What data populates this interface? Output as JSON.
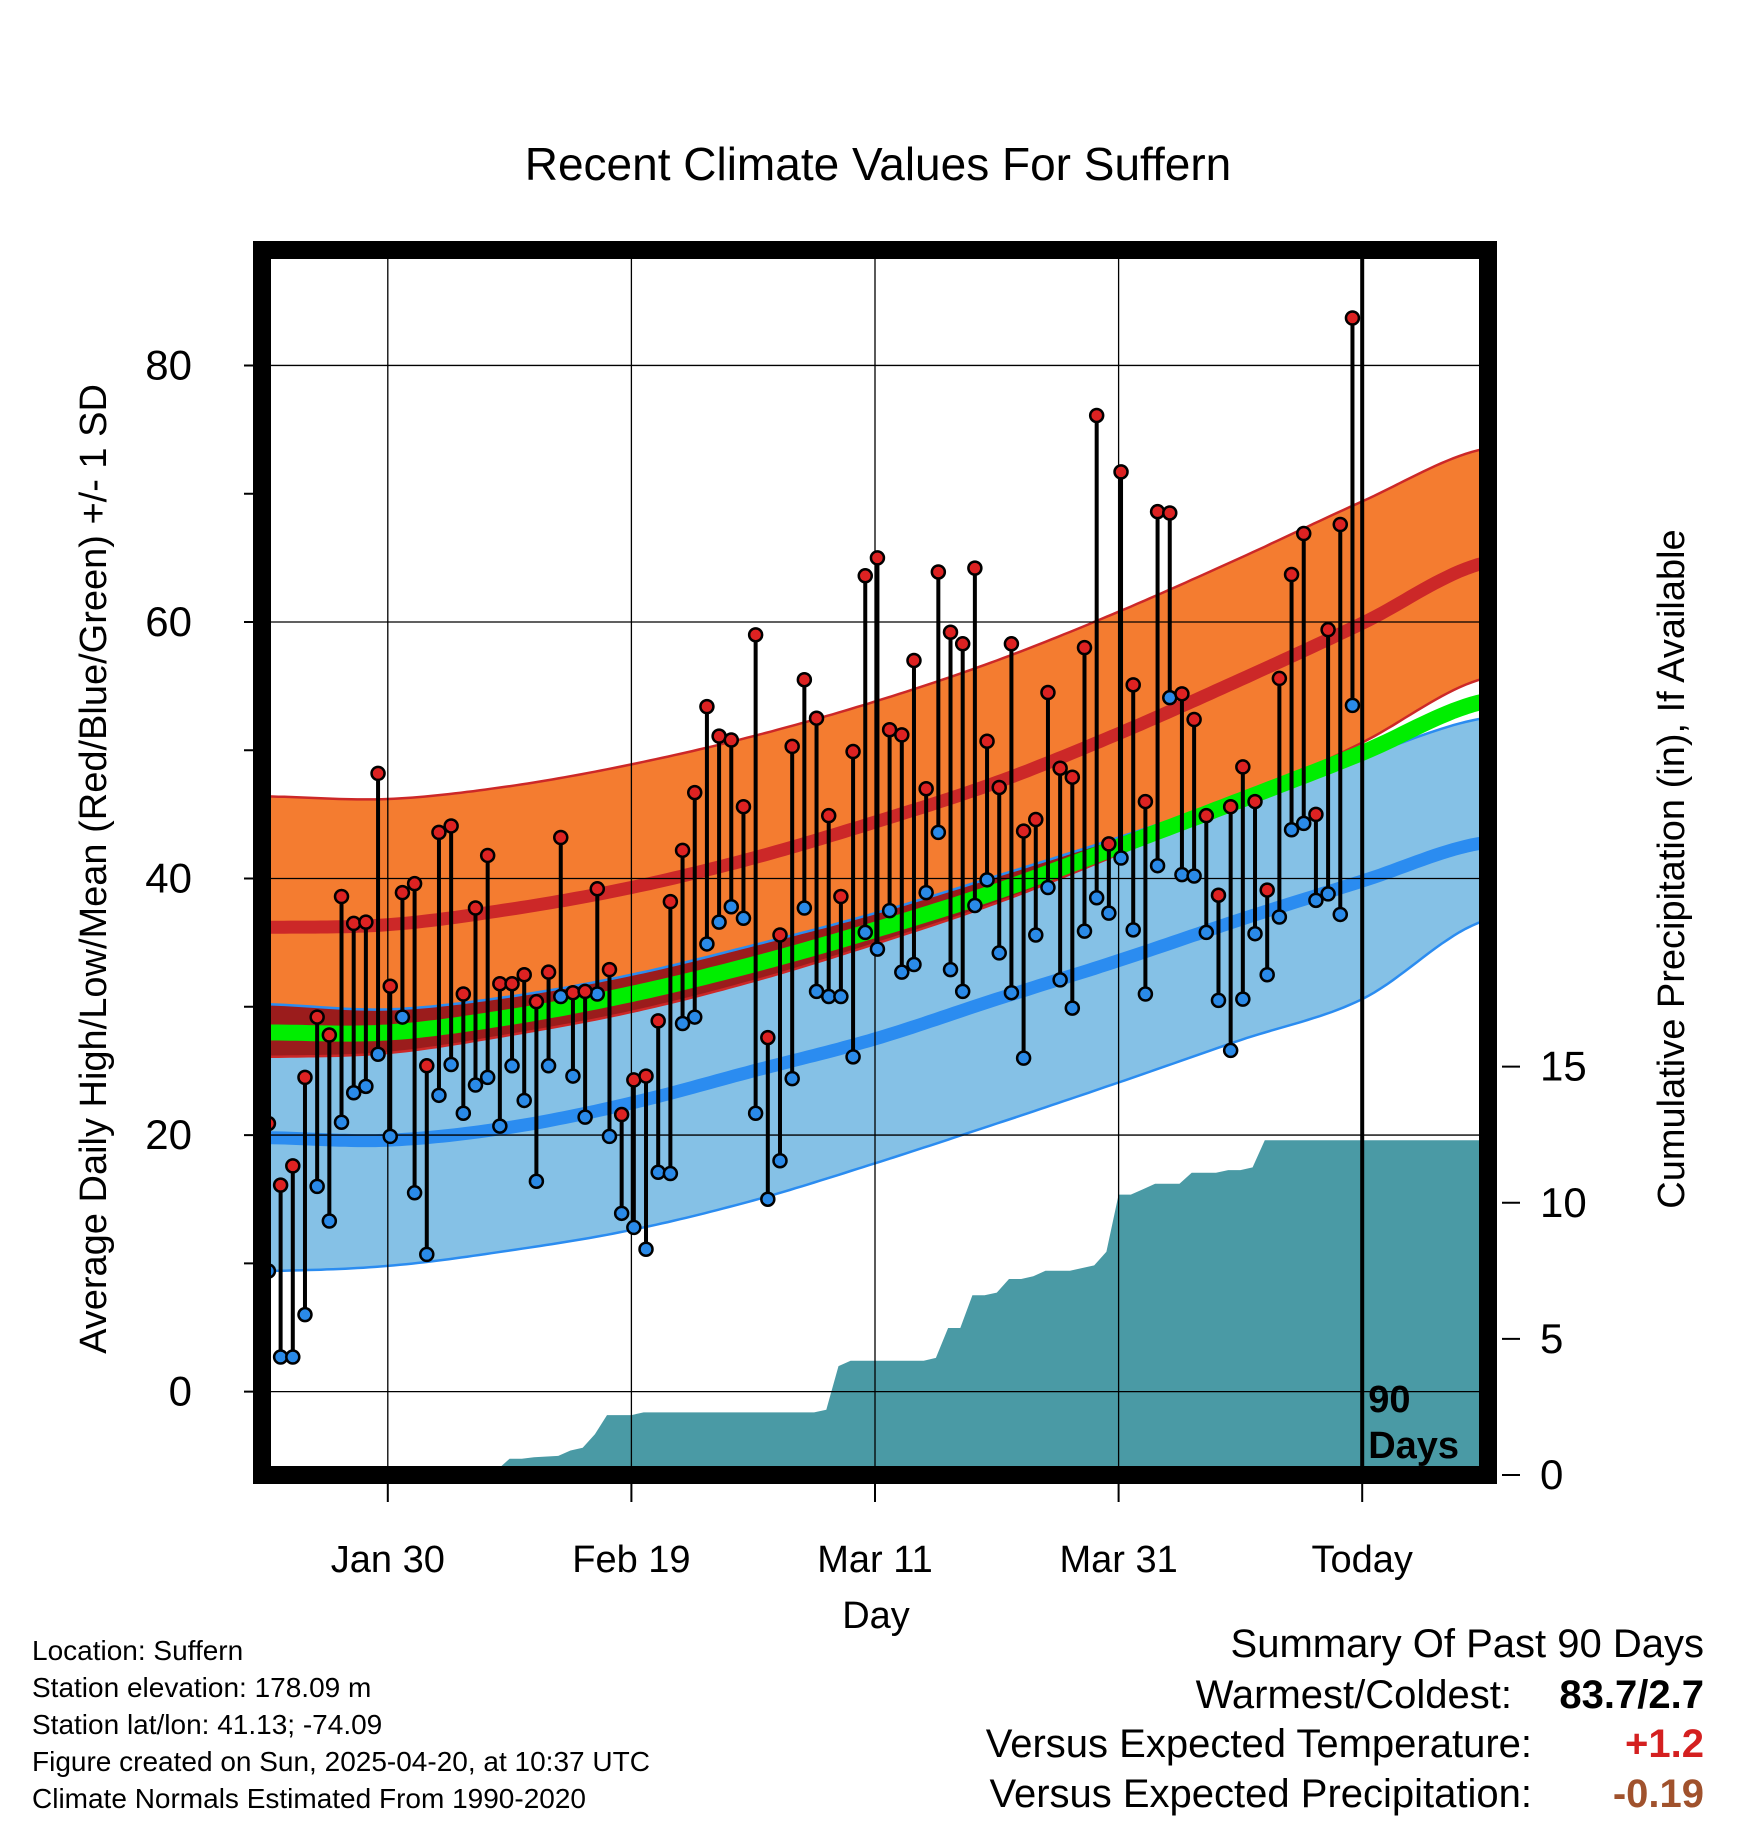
{
  "chart_data": {
    "type": "line",
    "title": "Recent Climate Values For Suffern",
    "xlabel": "Day",
    "ylabel": "Average Daily High/Low/Mean (Red/Blue/Green) +/- 1 SD",
    "y2label": "Cumulative Precipitation (in), If Available",
    "ylim": [
      -6.5,
      89
    ],
    "y2lim": [
      0,
      45
    ],
    "xlim": [
      0,
      100
    ],
    "x_ticks": [
      {
        "x": 10,
        "label": "Jan 30"
      },
      {
        "x": 30,
        "label": "Feb 19"
      },
      {
        "x": 50,
        "label": "Mar 11"
      },
      {
        "x": 70,
        "label": "Mar 31"
      },
      {
        "x": 90,
        "label": "Today"
      }
    ],
    "y_ticks": [
      0,
      20,
      40,
      60,
      80
    ],
    "y_minor_ticks": [
      10,
      30,
      50,
      70
    ],
    "y2_ticks": [
      0,
      5,
      10,
      15
    ],
    "today_x": 90,
    "today_label": [
      "90",
      "Days"
    ],
    "grid": true,
    "colors": {
      "high_band": "#f47c30",
      "high_mean": "#cc2828",
      "high_edge": "#cc2828",
      "low_band": "#85c1e6",
      "low_mean": "#2b8cf0",
      "low_edge": "#2b8cf0",
      "mean_line": "#00ee00",
      "overlap": "#9b1c1c",
      "precip": "#4a9aa5",
      "high_dot": "#dd2222",
      "low_dot": "#2a8ae8"
    },
    "normals": {
      "x": [
        0,
        10,
        20,
        30,
        40,
        50,
        60,
        70,
        80,
        90,
        100
      ],
      "high_mean": [
        36.2,
        36.4,
        37.6,
        39.3,
        41.6,
        44.4,
        47.5,
        51.3,
        55.5,
        59.9,
        64.6
      ],
      "high_upper": [
        46.4,
        46.2,
        47.2,
        48.9,
        51.1,
        53.8,
        57.0,
        60.8,
        65.0,
        69.4,
        73.5
      ],
      "high_lower": [
        26.1,
        26.4,
        27.8,
        29.6,
        32.0,
        34.9,
        38.1,
        41.9,
        46.1,
        50.6,
        55.6
      ],
      "mean": [
        28.0,
        28.0,
        29.2,
        31.0,
        33.3,
        36.0,
        39.0,
        42.5,
        46.1,
        49.8,
        53.8
      ],
      "low_mean": [
        19.8,
        19.6,
        20.6,
        22.5,
        25.0,
        27.5,
        30.6,
        33.6,
        36.8,
        39.8,
        42.8
      ],
      "low_upper": [
        30.2,
        29.8,
        30.8,
        32.5,
        34.8,
        37.3,
        40.2,
        43.2,
        46.4,
        49.5,
        52.5
      ],
      "low_lower": [
        9.4,
        9.8,
        11.0,
        12.6,
        14.9,
        17.8,
        20.9,
        24.1,
        27.4,
        30.6,
        36.7
      ]
    },
    "series": [
      {
        "name": "High",
        "x": [
          0.2,
          1.2,
          2.2,
          3.2,
          4.2,
          5.2,
          6.2,
          7.2,
          8.2,
          9.2,
          10.2,
          11.2,
          12.2,
          13.2,
          14.2,
          15.2,
          16.2,
          17.2,
          18.2,
          19.2,
          20.2,
          21.2,
          22.2,
          23.2,
          24.2,
          25.2,
          26.2,
          27.2,
          28.2,
          29.2,
          30.2,
          31.2,
          32.2,
          33.2,
          34.2,
          35.2,
          36.2,
          37.2,
          38.2,
          39.2,
          40.2,
          41.2,
          42.2,
          43.2,
          44.2,
          45.2,
          46.2,
          47.2,
          48.2,
          49.2,
          50.2,
          51.2,
          52.2,
          53.2,
          54.2,
          55.2,
          56.2,
          57.2,
          58.2,
          59.2,
          60.2,
          61.2,
          62.2,
          63.2,
          64.2,
          65.2,
          66.2,
          67.2,
          68.2,
          69.2,
          70.2,
          71.2,
          72.2,
          73.2,
          74.2,
          75.2,
          76.2,
          77.2,
          78.2,
          79.2,
          80.2,
          81.2,
          82.2,
          83.2,
          84.2,
          85.2,
          86.2,
          87.2,
          88.2,
          89.2
        ],
        "values": [
          20.9,
          16.1,
          17.6,
          24.5,
          29.2,
          27.8,
          38.6,
          36.5,
          36.6,
          48.2,
          31.6,
          38.9,
          39.6,
          25.4,
          43.6,
          44.1,
          31.0,
          37.7,
          41.8,
          31.8,
          31.8,
          32.5,
          30.4,
          32.7,
          43.2,
          31.1,
          31.2,
          39.2,
          32.9,
          21.6,
          24.3,
          24.6,
          28.9,
          38.2,
          42.2,
          46.7,
          53.4,
          51.1,
          50.8,
          45.6,
          59.0,
          27.6,
          35.6,
          50.3,
          55.5,
          52.5,
          44.9,
          38.6,
          49.9,
          63.6,
          65.0,
          51.6,
          51.2,
          57.0,
          47.0,
          63.9,
          59.2,
          58.3,
          64.2,
          50.7,
          47.1,
          58.3,
          43.7,
          44.6,
          54.5,
          48.6,
          47.9,
          58.0,
          76.1,
          42.7,
          71.7,
          55.1,
          46.0,
          68.6,
          68.5,
          54.4,
          52.4,
          44.9,
          38.7,
          45.6,
          48.7,
          46.0,
          39.1,
          55.6,
          63.7,
          66.9,
          45.0,
          59.4,
          67.6,
          83.7
        ]
      },
      {
        "name": "Low",
        "x": [
          0.2,
          1.2,
          2.2,
          3.2,
          4.2,
          5.2,
          6.2,
          7.2,
          8.2,
          9.2,
          10.2,
          11.2,
          12.2,
          13.2,
          14.2,
          15.2,
          16.2,
          17.2,
          18.2,
          19.2,
          20.2,
          21.2,
          22.2,
          23.2,
          24.2,
          25.2,
          26.2,
          27.2,
          28.2,
          29.2,
          30.2,
          31.2,
          32.2,
          33.2,
          34.2,
          35.2,
          36.2,
          37.2,
          38.2,
          39.2,
          40.2,
          41.2,
          42.2,
          43.2,
          44.2,
          45.2,
          46.2,
          47.2,
          48.2,
          49.2,
          50.2,
          51.2,
          52.2,
          53.2,
          54.2,
          55.2,
          56.2,
          57.2,
          58.2,
          59.2,
          60.2,
          61.2,
          62.2,
          63.2,
          64.2,
          65.2,
          66.2,
          67.2,
          68.2,
          69.2,
          70.2,
          71.2,
          72.2,
          73.2,
          74.2,
          75.2,
          76.2,
          77.2,
          78.2,
          79.2,
          80.2,
          81.2,
          82.2,
          83.2,
          84.2,
          85.2,
          86.2,
          87.2,
          88.2,
          89.2
        ],
        "values": [
          9.4,
          2.7,
          2.7,
          6.0,
          16.0,
          13.3,
          21.0,
          23.3,
          23.8,
          26.3,
          19.9,
          29.2,
          15.5,
          10.7,
          23.1,
          25.5,
          21.7,
          23.9,
          24.5,
          20.7,
          25.4,
          22.7,
          16.4,
          25.4,
          30.8,
          24.6,
          21.4,
          31.0,
          19.9,
          13.9,
          12.8,
          11.1,
          17.1,
          17.0,
          28.7,
          29.2,
          34.9,
          36.6,
          37.8,
          36.9,
          21.7,
          15.0,
          18.0,
          24.4,
          37.7,
          31.2,
          30.8,
          30.8,
          26.1,
          35.8,
          34.5,
          37.5,
          32.7,
          33.3,
          38.9,
          43.6,
          32.9,
          31.2,
          37.9,
          39.9,
          34.2,
          31.1,
          26.0,
          35.6,
          39.3,
          32.1,
          29.9,
          35.9,
          38.5,
          37.3,
          41.6,
          36.0,
          31.0,
          41.0,
          54.1,
          40.3,
          40.2,
          35.8,
          30.5,
          26.6,
          30.6,
          35.7,
          32.5,
          37.0,
          43.8,
          44.3,
          38.3,
          38.8,
          37.2,
          53.5
        ]
      }
    ],
    "precip": {
      "x": [
        0,
        16,
        17,
        17.5,
        19,
        20,
        21,
        22,
        24,
        25,
        26,
        27,
        28,
        29,
        30,
        31,
        32,
        33,
        35,
        37,
        39,
        41,
        43,
        44,
        45,
        46,
        47,
        48,
        50,
        52,
        54,
        55,
        56,
        57,
        58,
        59,
        60,
        61,
        62,
        63,
        64,
        66,
        68,
        69,
        70,
        71,
        72,
        73,
        75,
        76,
        78,
        79,
        80,
        81,
        82,
        83,
        85,
        87,
        89,
        90,
        100
      ],
      "values": [
        0,
        0,
        0.1,
        0.2,
        0.2,
        0.6,
        0.6,
        0.65,
        0.7,
        0.9,
        1.0,
        1.5,
        2.2,
        2.2,
        2.2,
        2.3,
        2.3,
        2.3,
        2.3,
        2.3,
        2.3,
        2.3,
        2.3,
        2.3,
        2.3,
        2.4,
        4.0,
        4.2,
        4.2,
        4.2,
        4.2,
        4.3,
        5.4,
        5.4,
        6.6,
        6.6,
        6.7,
        7.2,
        7.2,
        7.3,
        7.5,
        7.5,
        7.7,
        8.2,
        10.3,
        10.3,
        10.5,
        10.7,
        10.7,
        11.1,
        11.1,
        11.2,
        11.2,
        11.3,
        12.3,
        12.3,
        12.3,
        12.3,
        12.3,
        12.3,
        12.3
      ]
    }
  },
  "footer": {
    "location": "Location: Suffern",
    "elevation": "Station elevation: 178.09 m",
    "latlon": "Station lat/lon: 41.13; -74.09",
    "created": "Figure created on Sun, 2025-04-20, at 10:37 UTC",
    "normals": "Climate Normals Estimated From 1990-2020"
  },
  "summary": {
    "heading": "Summary Of Past 90 Days",
    "warm_cold_label": "Warmest/Coldest:",
    "warm_cold_value": "83.7/2.7",
    "temp_label": "Versus Expected Temperature:",
    "temp_value": "+1.2",
    "temp_color": "#d42020",
    "precip_label": "Versus Expected Precipitation:",
    "precip_value": "-0.19",
    "precip_color": "#a0522d"
  }
}
